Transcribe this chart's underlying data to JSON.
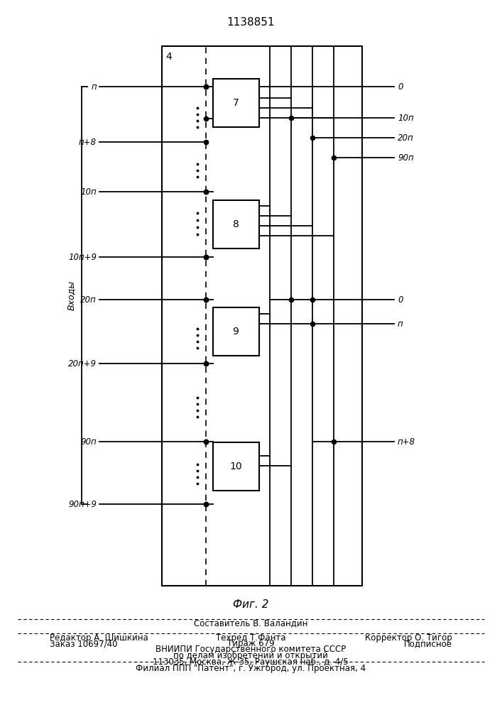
{
  "title": "1138851",
  "fig_caption": "Фиг. 2",
  "background_color": "#ffffff",
  "line_color": "#000000",
  "footer": {
    "line1_left": "Редактор А. Шишкина",
    "line1_center_top": "Составитель В. Валандин",
    "line1_center_bot": "Техред Т.Фанта",
    "line1_right": "Корректор О. Тигор",
    "line2_left": "Заказ 10697/40",
    "line2_center": "Тираж 679",
    "line2_right": "Подписное",
    "line3": "ВНИИПИ Государственного комитета СССР",
    "line4": "по делам изобретений и открытий",
    "line5": "113035, Москва, Ж-35, Раушская наб., д. 4/5",
    "line6": "Филиал ППП \"Патент\", г. Ужгород, ул. Проектная, 4"
  }
}
